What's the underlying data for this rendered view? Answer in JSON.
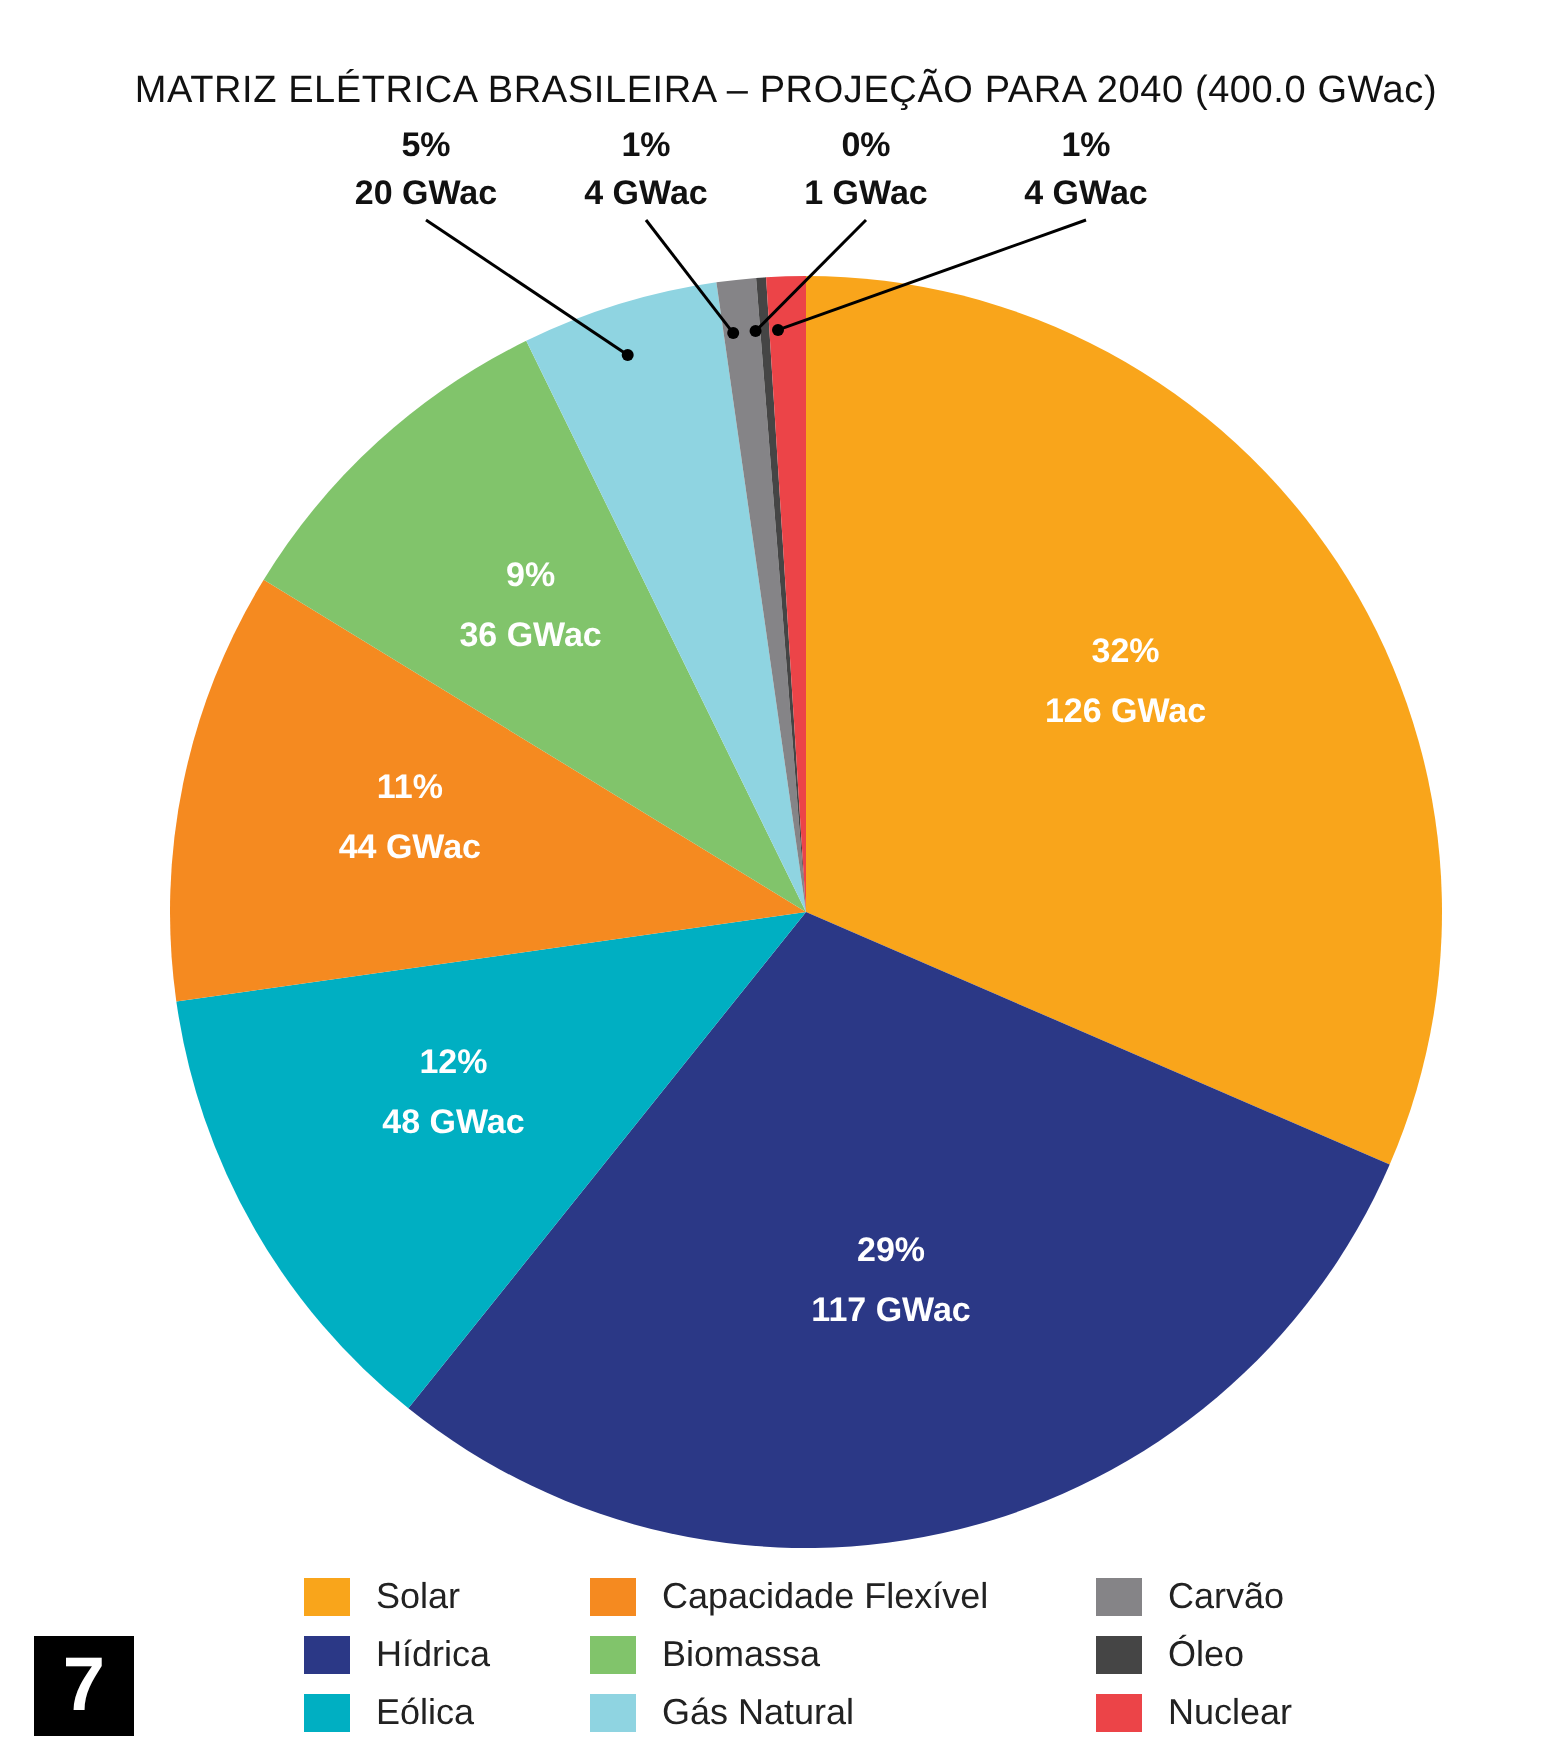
{
  "chart_data": {
    "type": "pie",
    "title": "MATRIZ ELÉTRICA BRASILEIRA – PROJEÇÃO PARA 2040 (400.0 GWac)",
    "categories": [
      "Solar",
      "Hídrica",
      "Eólica",
      "Capacidade Flexível",
      "Biomassa",
      "Gás Natural",
      "Carvão",
      "Óleo",
      "Nuclear"
    ],
    "values": [
      126,
      117,
      48,
      44,
      36,
      20,
      4,
      1,
      4
    ],
    "colors": [
      "#f9a51b",
      "#2b3886",
      "#00afc2",
      "#f58a20",
      "#81c46b",
      "#8fd4e1",
      "#858487",
      "#454545",
      "#ec4448"
    ],
    "value_labels": [
      "32%\n126 GWac",
      "29%\n117 GWac",
      "12%\n48 GWac",
      "11%\n44 GWac",
      "9%\n36 GWac",
      "5%\n20 GWac",
      "1%\n4 GWac",
      "0%\n1 GWac",
      "1%\n4 GWac"
    ],
    "legend": "bottom",
    "annotations": [
      "7"
    ]
  }
}
